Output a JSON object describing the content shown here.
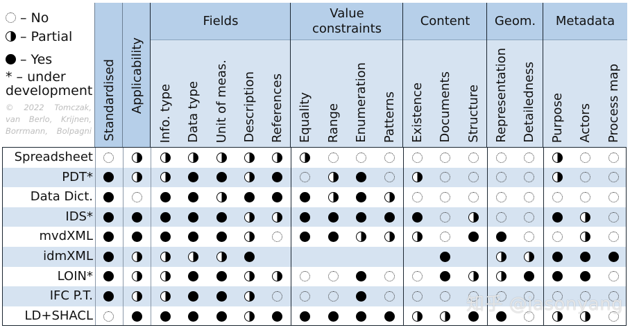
{
  "legend": {
    "items": [
      {
        "code": "N",
        "label": "– No"
      },
      {
        "code": "P",
        "label": "– Partial"
      },
      {
        "code": "Y",
        "label": "– Yes"
      }
    ],
    "development_note": "* – under development",
    "credit": "© 2022 Tomczak, van Berlo, Krijnen, Borrmann, Bolpagni"
  },
  "header": {
    "standardised": "Standardised",
    "applicability": "Applicability",
    "groups": [
      {
        "title": "Fields",
        "columns": [
          "Info. type",
          "Data type",
          "Unit of meas.",
          "Description",
          "References"
        ]
      },
      {
        "title": "Value constraints",
        "columns": [
          "Equality",
          "Range",
          "Enumeration",
          "Patterns"
        ]
      },
      {
        "title": "Content",
        "columns": [
          "Existence",
          "Documents",
          "Structure"
        ]
      },
      {
        "title": "Geom.",
        "columns": [
          "Representation",
          "Detailedness"
        ]
      },
      {
        "title": "Metadata",
        "columns": [
          "Purpose",
          "Actors",
          "Process map"
        ]
      }
    ]
  },
  "symbol_codes": {
    "Y": "Yes (filled circle)",
    "P": "Partial (half circle)",
    "N": "No (dotted circle)",
    "": "empty"
  },
  "rows": [
    {
      "label": "Spreadsheet",
      "values": [
        "N",
        "P",
        "P",
        "P",
        "P",
        "P",
        "P",
        "P",
        "N",
        "N",
        "N",
        "N",
        "N",
        "N",
        "N",
        "N",
        "P",
        "N",
        "N"
      ]
    },
    {
      "label": "PDT*",
      "values": [
        "Y",
        "P",
        "P",
        "Y",
        "Y",
        "P",
        "Y",
        "N",
        "P",
        "Y",
        "N",
        "P",
        "N",
        "N",
        "N",
        "N",
        "P",
        "N",
        "N"
      ]
    },
    {
      "label": "Data Dict.",
      "values": [
        "Y",
        "N",
        "Y",
        "Y",
        "P",
        "Y",
        "Y",
        "Y",
        "P",
        "Y",
        "P",
        "N",
        "N",
        "N",
        "N",
        "N",
        "N",
        "N",
        "N"
      ]
    },
    {
      "label": "IDS*",
      "values": [
        "Y",
        "Y",
        "Y",
        "Y",
        "Y",
        "P",
        "P",
        "Y",
        "Y",
        "Y",
        "Y",
        "Y",
        "N",
        "P",
        "N",
        "N",
        "Y",
        "P",
        "N"
      ]
    },
    {
      "label": "mvdXML",
      "values": [
        "Y",
        "Y",
        "Y",
        "Y",
        "Y",
        "P",
        "N",
        "Y",
        "Y",
        "P",
        "P",
        "P",
        "N",
        "Y",
        "Y",
        "N",
        "N",
        "P",
        "N"
      ]
    },
    {
      "label": "idmXML",
      "values": [
        "Y",
        "P",
        "P",
        "P",
        "P",
        "Y",
        "",
        "",
        "",
        "",
        "",
        "",
        "Y",
        "",
        "P",
        "P",
        "Y",
        "Y",
        "Y"
      ]
    },
    {
      "label": "LOIN*",
      "values": [
        "Y",
        "P",
        "P",
        "Y",
        "Y",
        "P",
        "P",
        "N",
        "N",
        "Y",
        "N",
        "N",
        "Y",
        "P",
        "P",
        "Y",
        "Y",
        "Y",
        "N"
      ]
    },
    {
      "label": "IFC P.T.",
      "values": [
        "Y",
        "P",
        "P",
        "Y",
        "Y",
        "P",
        "N",
        "N",
        "N",
        "Y",
        "N",
        "N",
        "N",
        "N",
        "N",
        "N",
        "N",
        "N",
        "N"
      ]
    },
    {
      "label": "LD+SHACL",
      "values": [
        "N",
        "Y",
        "Y",
        "Y",
        "Y",
        "P",
        "Y",
        "Y",
        "Y",
        "Y",
        "Y",
        "P",
        "P",
        "Y",
        "Y",
        "N",
        "P",
        "P",
        "N"
      ]
    }
  ],
  "watermark": "知乎 @jasonyang",
  "colors": {
    "header_dark": "#b6cfe9",
    "header_light": "#d6e3f1",
    "row_alt": "#d6e3f1",
    "border": "#1a2530"
  }
}
